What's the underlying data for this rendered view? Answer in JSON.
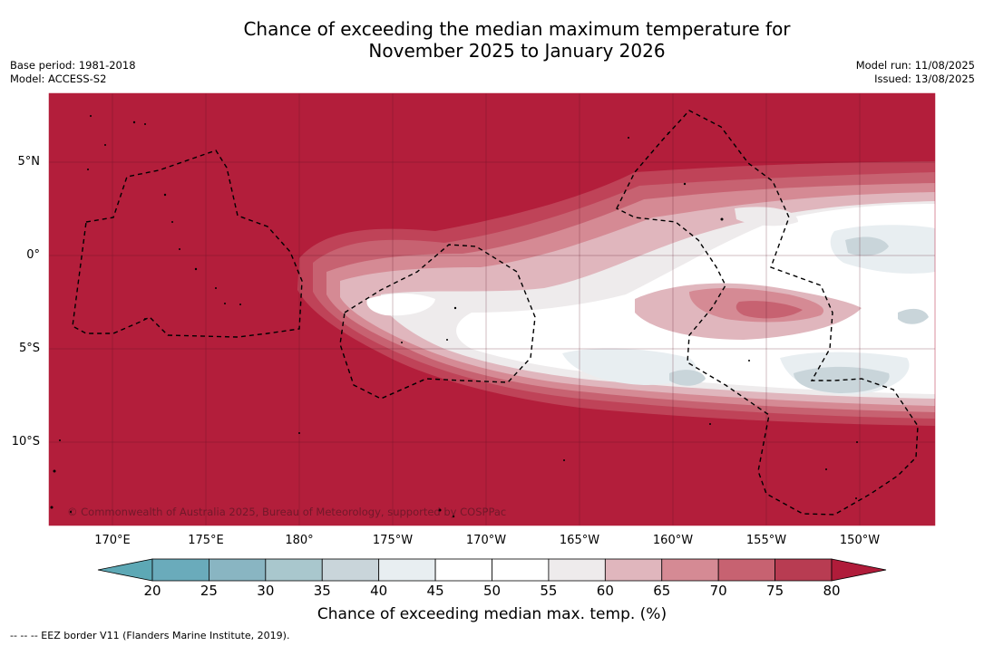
{
  "title_line1": "Chance of exceeding the median maximum temperature for",
  "title_line2": "November 2025 to January 2026",
  "left_meta": [
    "Base period: 1981-2018",
    "Model: ACCESS-S2"
  ],
  "right_meta": [
    "Model run: 11/08/2025",
    "Issued: 13/08/2025"
  ],
  "lat_labels": [
    "5°N",
    "0°",
    "5°S",
    "10°S"
  ],
  "lon_labels": [
    "170°E",
    "175°E",
    "180°",
    "175°W",
    "170°W",
    "165°W",
    "160°W",
    "155°W",
    "150°W"
  ],
  "copyright": "© Commonwealth of Australia 2025, Bureau of Meteorology, supported by COSPPac",
  "colorbar": {
    "ticks": [
      "20",
      "25",
      "30",
      "35",
      "40",
      "45",
      "50",
      "55",
      "60",
      "65",
      "70",
      "75",
      "80"
    ],
    "colors": [
      "#6aabbb",
      "#89b5c2",
      "#a9c7cd",
      "#c9d5da",
      "#e8eef1",
      "#ffffff",
      "#ffffff",
      "#eeebec",
      "#e0b6bd",
      "#d58a94",
      "#c76271",
      "#b83c52"
    ],
    "under_color": "#5da8b5",
    "over_color": "#b01c3a",
    "label": "Chance of exceeding median max. temp. (%)"
  },
  "colors": {
    "background_red": "#b31e3b"
  },
  "footnote": "--  --  -- EEZ border V11 (Flanders Marine Institute, 2019)."
}
